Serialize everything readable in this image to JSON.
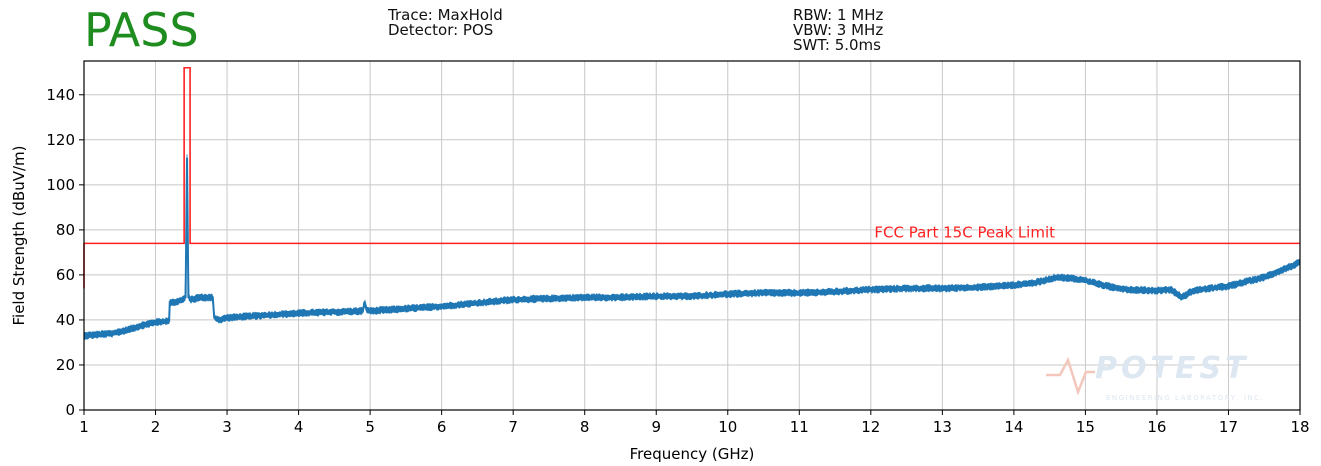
{
  "status": {
    "text": "PASS",
    "color": "#1e8c1e"
  },
  "header_left": [
    "Trace: MaxHold",
    "Detector: POS"
  ],
  "header_right": [
    "RBW: 1 MHz",
    "VBW: 3 MHz",
    "SWT: 5.0ms"
  ],
  "watermark": {
    "brand": "POTEST",
    "tagline": "ENGINEERING LABORATORY, INC."
  },
  "colors": {
    "trace": "#1f77b4",
    "limit": "#ff2020",
    "grid": "#c8c8c8"
  },
  "chart_data": {
    "type": "line",
    "xlabel": "Frequency (GHz)",
    "ylabel": "Field Strength (dBuV/m)",
    "xlim": [
      1,
      18
    ],
    "ylim": [
      0,
      155
    ],
    "xticks": [
      1,
      2,
      3,
      4,
      5,
      6,
      7,
      8,
      9,
      10,
      11,
      12,
      13,
      14,
      15,
      16,
      17,
      18
    ],
    "yticks": [
      0,
      20,
      40,
      60,
      80,
      100,
      120,
      140
    ],
    "grid": true,
    "series": [
      {
        "name": "",
        "x": [
          1.0,
          1.2,
          1.4,
          1.6,
          1.8,
          2.0,
          2.19,
          2.2,
          2.3,
          2.38,
          2.42,
          2.44,
          2.46,
          2.5,
          2.6,
          2.8,
          2.82,
          2.9,
          3.0,
          3.5,
          4.0,
          4.5,
          4.9,
          4.92,
          4.95,
          5.0,
          5.5,
          6.0,
          6.5,
          7.0,
          7.5,
          8.0,
          8.5,
          9.0,
          9.5,
          10.0,
          10.5,
          11.0,
          11.5,
          12.0,
          12.5,
          13.0,
          13.5,
          14.0,
          14.3,
          14.6,
          14.8,
          15.0,
          15.3,
          15.6,
          16.0,
          16.2,
          16.35,
          16.5,
          17.0,
          17.5,
          18.0
        ],
        "y": [
          33,
          33.5,
          34,
          35.5,
          37.5,
          39,
          39.5,
          48,
          48,
          49,
          50,
          112,
          50,
          49,
          50,
          50,
          41,
          40,
          41,
          42,
          43,
          43.5,
          44,
          48,
          44.5,
          44,
          45,
          46,
          47.5,
          49,
          49.5,
          50,
          50,
          50.5,
          50.5,
          51.5,
          52,
          52,
          52.5,
          53.5,
          54,
          54,
          54.5,
          55.5,
          56.5,
          59,
          58.5,
          57.5,
          55,
          53.5,
          53,
          53.5,
          50,
          53,
          55,
          59,
          65.5
        ]
      }
    ],
    "limit_line": {
      "label": "FCC Part 15C Peak Limit",
      "x": [
        1.0,
        1.0,
        2.4,
        2.4,
        2.483,
        2.483,
        18.0
      ],
      "y": [
        54,
        74,
        74,
        152,
        152,
        74,
        74
      ]
    }
  }
}
